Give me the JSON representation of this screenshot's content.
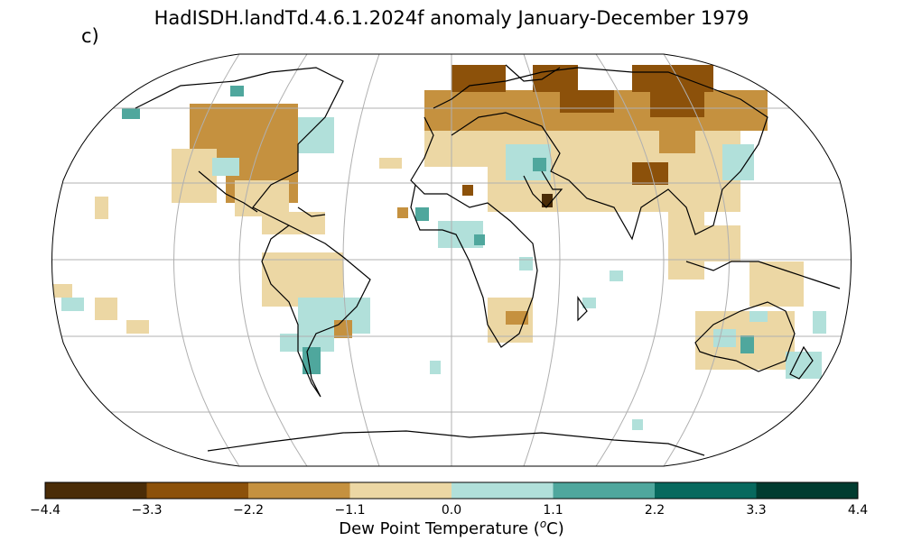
{
  "title": "HadISDH.landTd.4.6.1.2024f anomaly January-December 1979",
  "panel_label": "c)",
  "colorbar": {
    "label_main": "Dew Point Temperature (",
    "label_sup": "o",
    "label_end": "C)",
    "ticks": [
      "−4.4",
      "−3.3",
      "−2.2",
      "−1.1",
      "0.0",
      "1.1",
      "2.2",
      "3.3",
      "4.4"
    ],
    "colors": [
      "#4a2c07",
      "#8c510a",
      "#c5913f",
      "#ecd7a4",
      "#b1e0da",
      "#4fa79d",
      "#07695e",
      "#003c30"
    ]
  }
}
